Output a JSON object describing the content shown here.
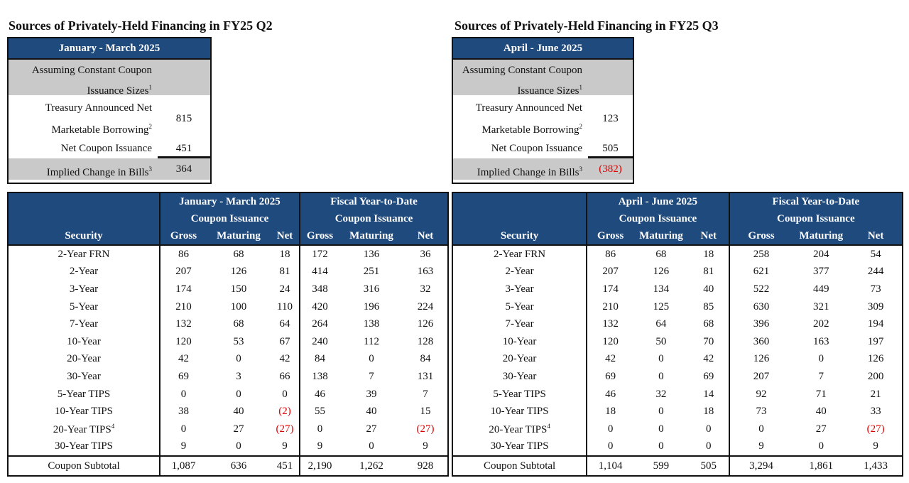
{
  "left": {
    "title": "Sources of Privately-Held Financing in FY25 Q2",
    "summary": {
      "period": "January - March 2025",
      "assuming_line1": "Assuming Constant Coupon",
      "assuming_line2": "Issuance Sizes",
      "assuming_note": "1",
      "borrowing_line1": "Treasury Announced Net",
      "borrowing_line2": "Marketable Borrowing",
      "borrowing_note": "2",
      "borrowing_value": "815",
      "net_coupon_label": "Net Coupon Issuance",
      "net_coupon_value": "451",
      "bills_label": "Implied Change in Bills",
      "bills_note": "3",
      "bills_value": "364"
    },
    "table": {
      "security_header": "Security",
      "group1": [
        "January - March 2025",
        "Coupon Issuance"
      ],
      "group2": [
        "Fiscal Year-to-Date",
        "Coupon Issuance"
      ],
      "cols": [
        "Gross",
        "Maturing",
        "Net"
      ],
      "rows": [
        {
          "security": "2-Year FRN",
          "note": "",
          "v": [
            "86",
            "68",
            "18",
            "172",
            "136",
            "36"
          ]
        },
        {
          "security": "2-Year",
          "note": "",
          "v": [
            "207",
            "126",
            "81",
            "414",
            "251",
            "163"
          ]
        },
        {
          "security": "3-Year",
          "note": "",
          "v": [
            "174",
            "150",
            "24",
            "348",
            "316",
            "32"
          ]
        },
        {
          "security": "5-Year",
          "note": "",
          "v": [
            "210",
            "100",
            "110",
            "420",
            "196",
            "224"
          ]
        },
        {
          "security": "7-Year",
          "note": "",
          "v": [
            "132",
            "68",
            "64",
            "264",
            "138",
            "126"
          ]
        },
        {
          "security": "10-Year",
          "note": "",
          "v": [
            "120",
            "53",
            "67",
            "240",
            "112",
            "128"
          ]
        },
        {
          "security": "20-Year",
          "note": "",
          "v": [
            "42",
            "0",
            "42",
            "84",
            "0",
            "84"
          ]
        },
        {
          "security": "30-Year",
          "note": "",
          "v": [
            "69",
            "3",
            "66",
            "138",
            "7",
            "131"
          ]
        },
        {
          "security": "5-Year TIPS",
          "note": "",
          "v": [
            "0",
            "0",
            "0",
            "46",
            "39",
            "7"
          ]
        },
        {
          "security": "10-Year TIPS",
          "note": "",
          "v": [
            "38",
            "40",
            "(2)",
            "55",
            "40",
            "15"
          ]
        },
        {
          "security": "20-Year TIPS",
          "note": "4",
          "v": [
            "0",
            "27",
            "(27)",
            "0",
            "27",
            "(27)"
          ]
        },
        {
          "security": "30-Year TIPS",
          "note": "",
          "v": [
            "9",
            "0",
            "9",
            "9",
            "0",
            "9"
          ]
        }
      ],
      "subtotal": {
        "security": "Coupon Subtotal",
        "note": "",
        "v": [
          "1,087",
          "636",
          "451",
          "2,190",
          "1,262",
          "928"
        ]
      }
    }
  },
  "right": {
    "title": "Sources of Privately-Held Financing in FY25 Q3",
    "summary": {
      "period": "April - June 2025",
      "assuming_line1": "Assuming Constant Coupon",
      "assuming_line2": "Issuance Sizes",
      "assuming_note": "1",
      "borrowing_line1": "Treasury Announced Net",
      "borrowing_line2": "Marketable Borrowing",
      "borrowing_note": "2",
      "borrowing_value": "123",
      "net_coupon_label": "Net Coupon Issuance",
      "net_coupon_value": "505",
      "bills_label": "Implied Change in Bills",
      "bills_note": "3",
      "bills_value": "(382)"
    },
    "table": {
      "security_header": "Security",
      "group1": [
        "April - June 2025",
        "Coupon Issuance"
      ],
      "group2": [
        "Fiscal Year-to-Date",
        "Coupon Issuance"
      ],
      "cols": [
        "Gross",
        "Maturing",
        "Net"
      ],
      "rows": [
        {
          "security": "2-Year FRN",
          "note": "",
          "v": [
            "86",
            "68",
            "18",
            "258",
            "204",
            "54"
          ]
        },
        {
          "security": "2-Year",
          "note": "",
          "v": [
            "207",
            "126",
            "81",
            "621",
            "377",
            "244"
          ]
        },
        {
          "security": "3-Year",
          "note": "",
          "v": [
            "174",
            "134",
            "40",
            "522",
            "449",
            "73"
          ]
        },
        {
          "security": "5-Year",
          "note": "",
          "v": [
            "210",
            "125",
            "85",
            "630",
            "321",
            "309"
          ]
        },
        {
          "security": "7-Year",
          "note": "",
          "v": [
            "132",
            "64",
            "68",
            "396",
            "202",
            "194"
          ]
        },
        {
          "security": "10-Year",
          "note": "",
          "v": [
            "120",
            "50",
            "70",
            "360",
            "163",
            "197"
          ]
        },
        {
          "security": "20-Year",
          "note": "",
          "v": [
            "42",
            "0",
            "42",
            "126",
            "0",
            "126"
          ]
        },
        {
          "security": "30-Year",
          "note": "",
          "v": [
            "69",
            "0",
            "69",
            "207",
            "7",
            "200"
          ]
        },
        {
          "security": "5-Year TIPS",
          "note": "",
          "v": [
            "46",
            "32",
            "14",
            "92",
            "71",
            "21"
          ]
        },
        {
          "security": "10-Year TIPS",
          "note": "",
          "v": [
            "18",
            "0",
            "18",
            "73",
            "40",
            "33"
          ]
        },
        {
          "security": "20-Year TIPS",
          "note": "4",
          "v": [
            "0",
            "0",
            "0",
            "0",
            "27",
            "(27)"
          ]
        },
        {
          "security": "30-Year TIPS",
          "note": "",
          "v": [
            "0",
            "0",
            "0",
            "9",
            "0",
            "9"
          ]
        }
      ],
      "subtotal": {
        "security": "Coupon Subtotal",
        "note": "",
        "v": [
          "1,104",
          "599",
          "505",
          "3,294",
          "1,861",
          "1,433"
        ]
      }
    }
  },
  "colors": {
    "header_blue": "#1f4a7e",
    "gray": "#c9c9c9",
    "negative": "#e00000"
  }
}
